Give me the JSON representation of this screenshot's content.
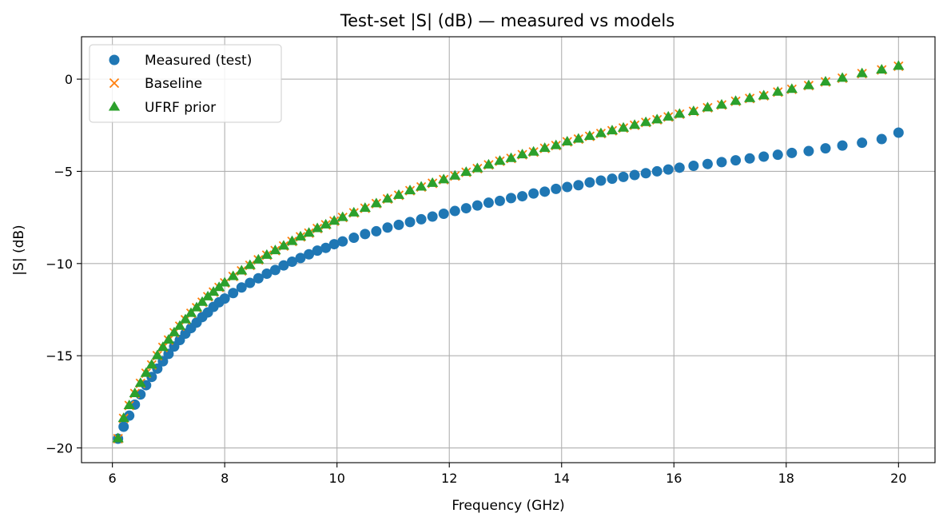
{
  "chart_data": {
    "type": "scatter",
    "title": "Test-set |S| (dB) — measured vs models",
    "xlabel": "Frequency (GHz)",
    "ylabel": "|S| (dB)",
    "xlim": [
      5.45,
      20.65
    ],
    "ylim": [
      -20.8,
      2.3
    ],
    "xticks": [
      6,
      8,
      10,
      12,
      14,
      16,
      18,
      20
    ],
    "yticks": [
      -20,
      -15,
      -10,
      -5,
      0
    ],
    "ytick_labels": [
      "−20",
      "−15",
      "−10",
      "−5",
      "0"
    ],
    "grid": true,
    "legend": "top-left",
    "series": [
      {
        "name": "Measured (test)",
        "marker": "circle",
        "color": "#1f77b4",
        "points": [
          [
            6.1,
            -19.5
          ],
          [
            6.2,
            -18.85
          ],
          [
            6.3,
            -18.25
          ],
          [
            6.4,
            -17.65
          ],
          [
            6.5,
            -17.1
          ],
          [
            6.6,
            -16.6
          ],
          [
            6.7,
            -16.15
          ],
          [
            6.8,
            -15.7
          ],
          [
            6.9,
            -15.3
          ],
          [
            7.0,
            -14.9
          ],
          [
            7.1,
            -14.5
          ],
          [
            7.2,
            -14.15
          ],
          [
            7.3,
            -13.8
          ],
          [
            7.4,
            -13.5
          ],
          [
            7.5,
            -13.2
          ],
          [
            7.6,
            -12.9
          ],
          [
            7.7,
            -12.65
          ],
          [
            7.8,
            -12.35
          ],
          [
            7.9,
            -12.1
          ],
          [
            8.0,
            -11.9
          ],
          [
            8.15,
            -11.6
          ],
          [
            8.3,
            -11.3
          ],
          [
            8.45,
            -11.05
          ],
          [
            8.6,
            -10.8
          ],
          [
            8.75,
            -10.55
          ],
          [
            8.9,
            -10.35
          ],
          [
            9.05,
            -10.1
          ],
          [
            9.2,
            -9.9
          ],
          [
            9.35,
            -9.7
          ],
          [
            9.5,
            -9.5
          ],
          [
            9.65,
            -9.3
          ],
          [
            9.8,
            -9.15
          ],
          [
            9.95,
            -8.95
          ],
          [
            10.1,
            -8.8
          ],
          [
            10.3,
            -8.6
          ],
          [
            10.5,
            -8.4
          ],
          [
            10.7,
            -8.25
          ],
          [
            10.9,
            -8.05
          ],
          [
            11.1,
            -7.9
          ],
          [
            11.3,
            -7.75
          ],
          [
            11.5,
            -7.6
          ],
          [
            11.7,
            -7.45
          ],
          [
            11.9,
            -7.3
          ],
          [
            12.1,
            -7.15
          ],
          [
            12.3,
            -7.0
          ],
          [
            12.5,
            -6.85
          ],
          [
            12.7,
            -6.7
          ],
          [
            12.9,
            -6.6
          ],
          [
            13.1,
            -6.45
          ],
          [
            13.3,
            -6.35
          ],
          [
            13.5,
            -6.2
          ],
          [
            13.7,
            -6.1
          ],
          [
            13.9,
            -5.95
          ],
          [
            14.1,
            -5.85
          ],
          [
            14.3,
            -5.75
          ],
          [
            14.5,
            -5.6
          ],
          [
            14.7,
            -5.5
          ],
          [
            14.9,
            -5.4
          ],
          [
            15.1,
            -5.3
          ],
          [
            15.3,
            -5.2
          ],
          [
            15.5,
            -5.1
          ],
          [
            15.7,
            -5.0
          ],
          [
            15.9,
            -4.9
          ],
          [
            16.1,
            -4.8
          ],
          [
            16.35,
            -4.7
          ],
          [
            16.6,
            -4.6
          ],
          [
            16.85,
            -4.5
          ],
          [
            17.1,
            -4.4
          ],
          [
            17.35,
            -4.3
          ],
          [
            17.6,
            -4.2
          ],
          [
            17.85,
            -4.1
          ],
          [
            18.1,
            -4.0
          ],
          [
            18.4,
            -3.9
          ],
          [
            18.7,
            -3.75
          ],
          [
            19.0,
            -3.6
          ],
          [
            19.35,
            -3.45
          ],
          [
            19.7,
            -3.25
          ],
          [
            20.0,
            -2.9
          ]
        ]
      },
      {
        "name": "Baseline",
        "marker": "x",
        "color": "#ff7f0e",
        "points": [
          [
            6.1,
            -19.5
          ],
          [
            6.2,
            -18.4
          ],
          [
            6.3,
            -17.7
          ],
          [
            6.4,
            -17.05
          ],
          [
            6.5,
            -16.5
          ],
          [
            6.6,
            -15.95
          ],
          [
            6.7,
            -15.5
          ],
          [
            6.8,
            -15.0
          ],
          [
            6.9,
            -14.55
          ],
          [
            7.0,
            -14.15
          ],
          [
            7.1,
            -13.75
          ],
          [
            7.2,
            -13.4
          ],
          [
            7.3,
            -13.05
          ],
          [
            7.4,
            -12.7
          ],
          [
            7.5,
            -12.4
          ],
          [
            7.6,
            -12.1
          ],
          [
            7.7,
            -11.8
          ],
          [
            7.8,
            -11.55
          ],
          [
            7.9,
            -11.3
          ],
          [
            8.0,
            -11.05
          ],
          [
            8.15,
            -10.7
          ],
          [
            8.3,
            -10.4
          ],
          [
            8.45,
            -10.1
          ],
          [
            8.6,
            -9.8
          ],
          [
            8.75,
            -9.55
          ],
          [
            8.9,
            -9.3
          ],
          [
            9.05,
            -9.05
          ],
          [
            9.2,
            -8.8
          ],
          [
            9.35,
            -8.55
          ],
          [
            9.5,
            -8.35
          ],
          [
            9.65,
            -8.1
          ],
          [
            9.8,
            -7.9
          ],
          [
            9.95,
            -7.7
          ],
          [
            10.1,
            -7.5
          ],
          [
            10.3,
            -7.25
          ],
          [
            10.5,
            -7.0
          ],
          [
            10.7,
            -6.75
          ],
          [
            10.9,
            -6.5
          ],
          [
            11.1,
            -6.3
          ],
          [
            11.3,
            -6.05
          ],
          [
            11.5,
            -5.85
          ],
          [
            11.7,
            -5.65
          ],
          [
            11.9,
            -5.45
          ],
          [
            12.1,
            -5.25
          ],
          [
            12.3,
            -5.05
          ],
          [
            12.5,
            -4.85
          ],
          [
            12.7,
            -4.65
          ],
          [
            12.9,
            -4.45
          ],
          [
            13.1,
            -4.3
          ],
          [
            13.3,
            -4.1
          ],
          [
            13.5,
            -3.95
          ],
          [
            13.7,
            -3.75
          ],
          [
            13.9,
            -3.6
          ],
          [
            14.1,
            -3.4
          ],
          [
            14.3,
            -3.25
          ],
          [
            14.5,
            -3.1
          ],
          [
            14.7,
            -2.95
          ],
          [
            14.9,
            -2.8
          ],
          [
            15.1,
            -2.65
          ],
          [
            15.3,
            -2.5
          ],
          [
            15.5,
            -2.35
          ],
          [
            15.7,
            -2.2
          ],
          [
            15.9,
            -2.05
          ],
          [
            16.1,
            -1.9
          ],
          [
            16.35,
            -1.75
          ],
          [
            16.6,
            -1.55
          ],
          [
            16.85,
            -1.4
          ],
          [
            17.1,
            -1.2
          ],
          [
            17.35,
            -1.05
          ],
          [
            17.6,
            -0.9
          ],
          [
            17.85,
            -0.7
          ],
          [
            18.1,
            -0.55
          ],
          [
            18.4,
            -0.35
          ],
          [
            18.7,
            -0.15
          ],
          [
            19.0,
            0.05
          ],
          [
            19.35,
            0.3
          ],
          [
            19.7,
            0.5
          ],
          [
            20.0,
            0.7
          ]
        ]
      },
      {
        "name": "UFRF prior",
        "marker": "triangle",
        "color": "#2ca02c",
        "points": [
          [
            6.1,
            -19.5
          ],
          [
            6.2,
            -18.4
          ],
          [
            6.3,
            -17.7
          ],
          [
            6.4,
            -17.05
          ],
          [
            6.5,
            -16.5
          ],
          [
            6.6,
            -15.95
          ],
          [
            6.7,
            -15.5
          ],
          [
            6.8,
            -15.0
          ],
          [
            6.9,
            -14.55
          ],
          [
            7.0,
            -14.15
          ],
          [
            7.1,
            -13.75
          ],
          [
            7.2,
            -13.4
          ],
          [
            7.3,
            -13.05
          ],
          [
            7.4,
            -12.7
          ],
          [
            7.5,
            -12.4
          ],
          [
            7.6,
            -12.1
          ],
          [
            7.7,
            -11.8
          ],
          [
            7.8,
            -11.55
          ],
          [
            7.9,
            -11.3
          ],
          [
            8.0,
            -11.05
          ],
          [
            8.15,
            -10.7
          ],
          [
            8.3,
            -10.4
          ],
          [
            8.45,
            -10.1
          ],
          [
            8.6,
            -9.8
          ],
          [
            8.75,
            -9.55
          ],
          [
            8.9,
            -9.3
          ],
          [
            9.05,
            -9.05
          ],
          [
            9.2,
            -8.8
          ],
          [
            9.35,
            -8.55
          ],
          [
            9.5,
            -8.35
          ],
          [
            9.65,
            -8.1
          ],
          [
            9.8,
            -7.9
          ],
          [
            9.95,
            -7.7
          ],
          [
            10.1,
            -7.5
          ],
          [
            10.3,
            -7.25
          ],
          [
            10.5,
            -7.0
          ],
          [
            10.7,
            -6.75
          ],
          [
            10.9,
            -6.5
          ],
          [
            11.1,
            -6.3
          ],
          [
            11.3,
            -6.05
          ],
          [
            11.5,
            -5.85
          ],
          [
            11.7,
            -5.65
          ],
          [
            11.9,
            -5.45
          ],
          [
            12.1,
            -5.25
          ],
          [
            12.3,
            -5.05
          ],
          [
            12.5,
            -4.85
          ],
          [
            12.7,
            -4.65
          ],
          [
            12.9,
            -4.45
          ],
          [
            13.1,
            -4.3
          ],
          [
            13.3,
            -4.1
          ],
          [
            13.5,
            -3.95
          ],
          [
            13.7,
            -3.75
          ],
          [
            13.9,
            -3.6
          ],
          [
            14.1,
            -3.4
          ],
          [
            14.3,
            -3.25
          ],
          [
            14.5,
            -3.1
          ],
          [
            14.7,
            -2.95
          ],
          [
            14.9,
            -2.8
          ],
          [
            15.1,
            -2.65
          ],
          [
            15.3,
            -2.5
          ],
          [
            15.5,
            -2.35
          ],
          [
            15.7,
            -2.2
          ],
          [
            15.9,
            -2.05
          ],
          [
            16.1,
            -1.9
          ],
          [
            16.35,
            -1.75
          ],
          [
            16.6,
            -1.55
          ],
          [
            16.85,
            -1.4
          ],
          [
            17.1,
            -1.2
          ],
          [
            17.35,
            -1.05
          ],
          [
            17.6,
            -0.9
          ],
          [
            17.85,
            -0.7
          ],
          [
            18.1,
            -0.55
          ],
          [
            18.4,
            -0.35
          ],
          [
            18.7,
            -0.15
          ],
          [
            19.0,
            0.05
          ],
          [
            19.35,
            0.3
          ],
          [
            19.7,
            0.5
          ],
          [
            20.0,
            0.7
          ]
        ]
      }
    ]
  }
}
